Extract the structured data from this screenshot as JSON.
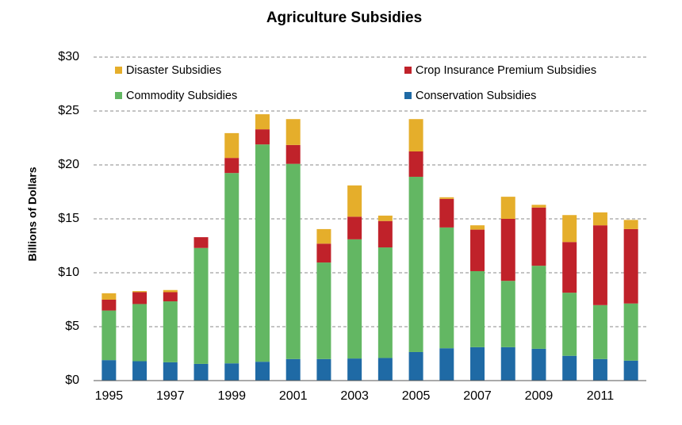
{
  "chart_data": {
    "type": "stacked_bar",
    "title": "Agriculture Subsidies",
    "y_label": "Billions of Dollars",
    "categories": [
      "1995",
      null,
      "1997",
      null,
      "1999",
      null,
      "2001",
      null,
      "2003",
      null,
      "2005",
      null,
      "2007",
      null,
      "2009",
      null,
      "2011",
      null
    ],
    "series": [
      {
        "name": "Conservation Subsidies",
        "color": "#1f6aa5",
        "values": [
          1.9,
          1.8,
          1.7,
          1.55,
          1.6,
          1.75,
          2.0,
          2.0,
          2.05,
          2.1,
          2.65,
          3.0,
          3.1,
          3.1,
          2.95,
          2.3,
          2.0,
          1.85
        ]
      },
      {
        "name": "Commodity Subsidies",
        "color": "#63b763",
        "values": [
          4.6,
          5.3,
          5.65,
          10.75,
          17.65,
          20.15,
          18.1,
          8.95,
          11.05,
          10.25,
          16.25,
          11.2,
          7.05,
          6.15,
          7.7,
          5.85,
          5.0,
          5.3
        ]
      },
      {
        "name": "Crop Insurance Premium Subsidies",
        "color": "#c0222a",
        "values": [
          1.0,
          1.1,
          0.85,
          1.0,
          1.4,
          1.4,
          1.75,
          1.75,
          2.1,
          2.45,
          2.35,
          2.65,
          3.85,
          5.75,
          5.4,
          4.7,
          7.4,
          6.9
        ]
      },
      {
        "name": "Disaster Subsidies",
        "color": "#e5ae2b",
        "values": [
          0.6,
          0.1,
          0.2,
          0,
          2.3,
          1.4,
          2.4,
          1.35,
          2.9,
          0.5,
          3.0,
          0.15,
          0.4,
          2.05,
          0.25,
          2.5,
          1.2,
          0.85
        ]
      }
    ],
    "ylim": [
      0,
      30
    ],
    "yticks": [
      {
        "value": 0,
        "label": "$0"
      },
      {
        "value": 5,
        "label": "$5"
      },
      {
        "value": 10,
        "label": "$10"
      },
      {
        "value": 15,
        "label": "$15"
      },
      {
        "value": 20,
        "label": "$20"
      },
      {
        "value": 25,
        "label": "$25"
      },
      {
        "value": 30,
        "label": "$30"
      }
    ],
    "grid": true
  }
}
